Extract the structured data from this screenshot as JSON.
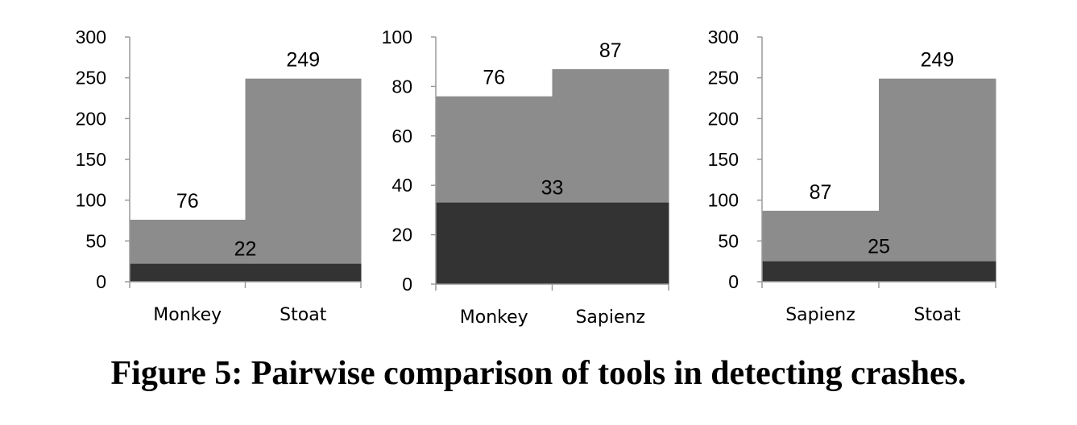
{
  "caption": "Figure 5: Pairwise comparison of tools in detecting crashes.",
  "colors": {
    "total": "#8c8c8c",
    "common": "#333333",
    "axis": "#9a9a9a"
  },
  "chart_data": [
    {
      "type": "bar",
      "categories": [
        "Monkey",
        "Stoat"
      ],
      "series": [
        {
          "values": [
            76,
            249
          ]
        },
        {
          "values": [
            22,
            22
          ]
        }
      ],
      "value_labels": {
        "totals": [
          "76",
          "249"
        ],
        "common": "22"
      },
      "ylim": [
        0,
        300
      ],
      "yticks": [
        "0",
        "50",
        "100",
        "150",
        "200",
        "250",
        "300"
      ],
      "grid": false
    },
    {
      "type": "bar",
      "categories": [
        "Monkey",
        "Sapienz"
      ],
      "series": [
        {
          "values": [
            76,
            87
          ]
        },
        {
          "values": [
            33,
            33
          ]
        }
      ],
      "value_labels": {
        "totals": [
          "76",
          "87"
        ],
        "common": "33"
      },
      "ylim": [
        0,
        100
      ],
      "yticks": [
        "0",
        "20",
        "40",
        "60",
        "80",
        "100"
      ],
      "grid": false
    },
    {
      "type": "bar",
      "categories": [
        "Sapienz",
        "Stoat"
      ],
      "series": [
        {
          "values": [
            87,
            249
          ]
        },
        {
          "values": [
            25,
            25
          ]
        }
      ],
      "value_labels": {
        "totals": [
          "87",
          "249"
        ],
        "common": "25"
      },
      "ylim": [
        0,
        300
      ],
      "yticks": [
        "0",
        "50",
        "100",
        "150",
        "200",
        "250",
        "300"
      ],
      "grid": false
    }
  ]
}
